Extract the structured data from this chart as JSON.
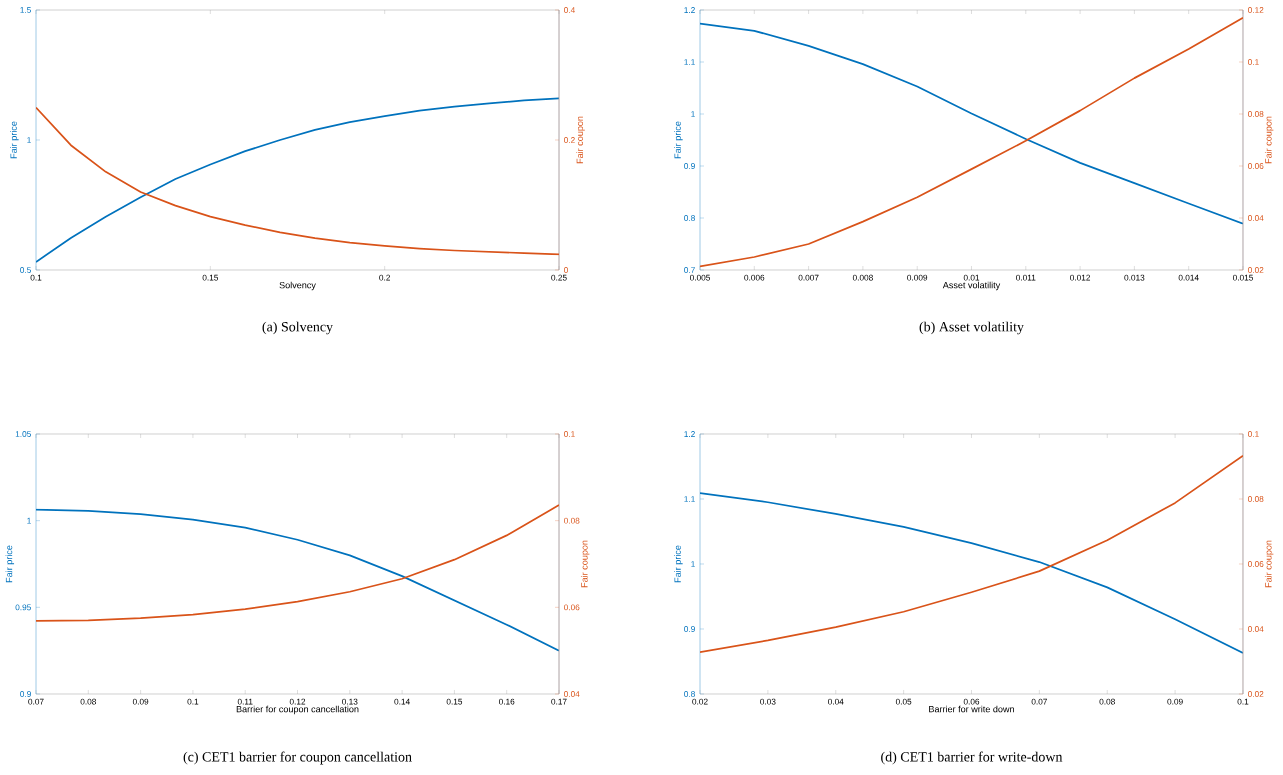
{
  "chart_data": [
    {
      "type": "line",
      "title": "(a) Solvency",
      "xlabel": "Solvency",
      "ylabel": "Fair price",
      "y2label": "Fair coupon",
      "x": [
        0.1,
        0.11,
        0.12,
        0.13,
        0.14,
        0.15,
        0.16,
        0.17,
        0.18,
        0.19,
        0.2,
        0.21,
        0.22,
        0.23,
        0.24,
        0.25
      ],
      "xlim": [
        0.1,
        0.25
      ],
      "xticks": [
        0.1,
        0.15,
        0.2,
        0.25
      ],
      "ylim": [
        0.5,
        1.5
      ],
      "yticks": [
        0.5,
        1,
        1.5
      ],
      "y2lim": [
        0,
        0.4
      ],
      "y2ticks": [
        0,
        0.2,
        0.4
      ],
      "series": [
        {
          "color": "#0072bd",
          "values": [
            0.531,
            0.623,
            0.705,
            0.78,
            0.85,
            0.906,
            0.957,
            1.0,
            1.039,
            1.069,
            1.092,
            1.113,
            1.128,
            1.141,
            1.152,
            1.16
          ]
        },
        {
          "color": "#d95319",
          "axis": "y2",
          "values": [
            0.25,
            0.192,
            0.151,
            0.12,
            0.099,
            0.082,
            0.069,
            0.058,
            0.049,
            0.042,
            0.037,
            0.033,
            0.03,
            0.028,
            0.026,
            0.024
          ]
        }
      ]
    },
    {
      "type": "line",
      "title": "(b) Asset volatility",
      "xlabel": "Asset volatility",
      "ylabel": "Fair price",
      "y2label": "Fair coupon",
      "x": [
        0.005,
        0.006,
        0.007,
        0.008,
        0.009,
        0.01,
        0.011,
        0.012,
        0.013,
        0.014,
        0.015
      ],
      "xlim": [
        0.005,
        0.015
      ],
      "xticks": [
        0.005,
        0.006,
        0.007,
        0.008,
        0.009,
        0.01,
        0.011,
        0.012,
        0.013,
        0.014,
        0.015
      ],
      "ylim": [
        0.7,
        1.2
      ],
      "yticks": [
        0.7,
        0.8,
        0.9,
        1,
        1.1,
        1.2
      ],
      "y2lim": [
        0.02,
        0.12
      ],
      "y2ticks": [
        0.02,
        0.04,
        0.06,
        0.08,
        0.1,
        0.12
      ],
      "series": [
        {
          "color": "#0072bd",
          "values": [
            1.174,
            1.16,
            1.131,
            1.096,
            1.053,
            1.001,
            0.952,
            0.906,
            0.867,
            0.828,
            0.789
          ]
        },
        {
          "color": "#d95319",
          "axis": "y2",
          "values": [
            0.0214,
            0.025,
            0.03,
            0.0386,
            0.048,
            0.0588,
            0.0697,
            0.0813,
            0.0938,
            0.105,
            0.117
          ]
        }
      ]
    },
    {
      "type": "line",
      "title": "(c) CET1 barrier for coupon cancellation",
      "xlabel": "Barrier for coupon cancellation",
      "ylabel": "Fair price",
      "y2label": "Fair coupon",
      "x": [
        0.07,
        0.08,
        0.09,
        0.1,
        0.11,
        0.12,
        0.13,
        0.14,
        0.15,
        0.16,
        0.17
      ],
      "xlim": [
        0.07,
        0.17
      ],
      "xticks": [
        0.07,
        0.08,
        0.09,
        0.1,
        0.11,
        0.12,
        0.13,
        0.14,
        0.15,
        0.16,
        0.17
      ],
      "ylim": [
        0.9,
        1.05
      ],
      "yticks": [
        0.9,
        0.95,
        1,
        1.05
      ],
      "y2lim": [
        0.04,
        0.1
      ],
      "y2ticks": [
        0.04,
        0.06,
        0.08,
        0.1
      ],
      "series": [
        {
          "color": "#0072bd",
          "values": [
            1.0064,
            1.0057,
            1.0038,
            1.0006,
            0.996,
            0.989,
            0.98,
            0.968,
            0.954,
            0.94,
            0.925
          ]
        },
        {
          "color": "#d95319",
          "axis": "y2",
          "values": [
            0.0569,
            0.057,
            0.0575,
            0.0583,
            0.0596,
            0.0613,
            0.0636,
            0.0666,
            0.071,
            0.0766,
            0.0836
          ]
        }
      ]
    },
    {
      "type": "line",
      "title": "(d) CET1 barrier for write-down",
      "xlabel": "Barrier for write down",
      "ylabel": "Fair price",
      "y2label": "Fair coupon",
      "x": [
        0.02,
        0.03,
        0.04,
        0.05,
        0.06,
        0.07,
        0.08,
        0.09,
        0.1
      ],
      "xlim": [
        0.02,
        0.1
      ],
      "xticks": [
        0.02,
        0.03,
        0.04,
        0.05,
        0.06,
        0.07,
        0.08,
        0.09,
        0.1
      ],
      "ylim": [
        0.8,
        1.2
      ],
      "yticks": [
        0.8,
        0.9,
        1,
        1.1,
        1.2
      ],
      "y2lim": [
        0.02,
        0.1
      ],
      "y2ticks": [
        0.02,
        0.04,
        0.06,
        0.08,
        0.1
      ],
      "series": [
        {
          "color": "#0072bd",
          "values": [
            1.109,
            1.095,
            1.077,
            1.057,
            1.032,
            1.003,
            0.964,
            0.915,
            0.863
          ]
        },
        {
          "color": "#d95319",
          "axis": "y2",
          "values": [
            0.0329,
            0.0365,
            0.0406,
            0.0453,
            0.0513,
            0.0578,
            0.0673,
            0.0788,
            0.0933
          ]
        }
      ]
    }
  ]
}
